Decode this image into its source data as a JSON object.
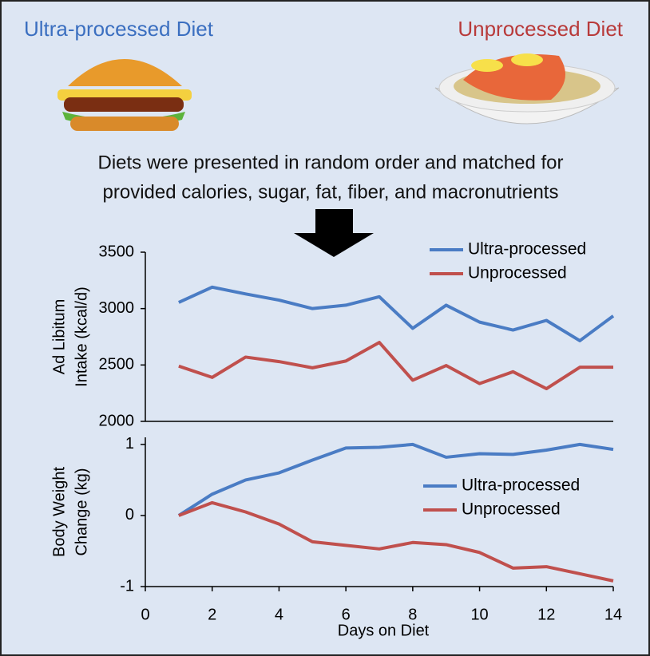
{
  "header": {
    "left_title": "Ultra-processed Diet",
    "right_title": "Unprocessed Diet",
    "description": [
      "Diets were presented in random order and matched for",
      "provided calories, sugar, fat, fiber, and macronutrients"
    ]
  },
  "chart_data": [
    {
      "type": "line",
      "ylabel": [
        "Ad Libitum",
        "Intake (kcal/d)"
      ],
      "x": [
        1,
        2,
        3,
        4,
        5,
        6,
        7,
        8,
        9,
        10,
        11,
        12,
        13,
        14
      ],
      "series": [
        {
          "name": "Ultra-processed",
          "color": "#4a7cc4",
          "values": [
            3055,
            3190,
            3130,
            3075,
            3000,
            3030,
            3105,
            2825,
            3030,
            2880,
            2810,
            2895,
            2715,
            2935
          ]
        },
        {
          "name": "Unprocessed",
          "color": "#c0504d",
          "values": [
            2490,
            2390,
            2570,
            2530,
            2475,
            2535,
            2700,
            2365,
            2495,
            2335,
            2440,
            2290,
            2480,
            2480
          ]
        }
      ],
      "xlim": [
        0,
        14
      ],
      "ylim": [
        2000,
        3500
      ],
      "yticks": [
        2000,
        2500,
        3000,
        3500
      ],
      "legend": "upper right"
    },
    {
      "type": "line",
      "ylabel": [
        "Body Weight",
        "Change (kg)"
      ],
      "xlabel": "Days on Diet",
      "x": [
        1,
        2,
        3,
        4,
        5,
        6,
        7,
        8,
        9,
        10,
        11,
        12,
        13,
        14
      ],
      "series": [
        {
          "name": "Ultra-processed",
          "color": "#4a7cc4",
          "values": [
            0,
            0.3,
            0.5,
            0.6,
            0.78,
            0.95,
            0.96,
            1.0,
            0.82,
            0.87,
            0.86,
            0.92,
            1.0,
            0.93
          ]
        },
        {
          "name": "Unprocessed",
          "color": "#c0504d",
          "values": [
            0,
            0.18,
            0.05,
            -0.12,
            -0.37,
            -0.42,
            -0.47,
            -0.38,
            -0.41,
            -0.52,
            -0.74,
            -0.72,
            -0.82,
            -0.92
          ]
        }
      ],
      "xlim": [
        0,
        14
      ],
      "xticks": [
        0,
        2,
        4,
        6,
        8,
        10,
        12,
        14
      ],
      "ylim": [
        -1,
        1.1
      ],
      "yticks": [
        -1,
        0,
        1
      ],
      "legend": "center right"
    }
  ]
}
